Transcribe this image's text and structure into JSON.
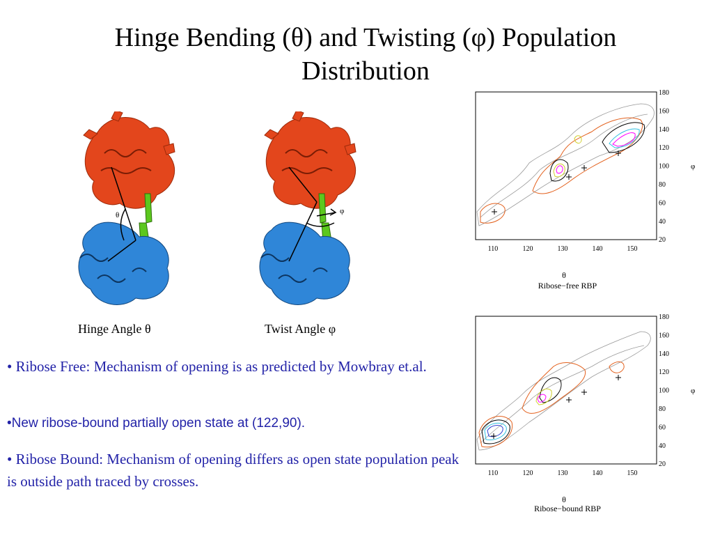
{
  "title": "Hinge Bending (θ) and Twisting (φ) Population Distribution",
  "figures": {
    "hinge_caption": "Hinge Angle θ",
    "twist_caption": "Twist Angle φ",
    "theta_symbol": "θ",
    "phi_symbol": "φ"
  },
  "bullets": [
    "• Ribose Free: Mechanism of opening is as predicted by Mowbray et.al.",
    "•New ribose-bound partially open state at  (122,90).",
    "• Ribose Bound: Mechanism of opening differs as open state population peak is outside path traced by crosses."
  ],
  "plots": [
    {
      "name": "Ribose−free RBP",
      "xlabel": "θ",
      "ylabel": "φ",
      "x_ticks": [
        "110",
        "120",
        "130",
        "140",
        "150"
      ],
      "y_ticks": [
        "180",
        "160",
        "140",
        "120",
        "100",
        "80",
        "60",
        "40",
        "20"
      ]
    },
    {
      "name": "Ribose−bound RBP",
      "xlabel": "θ",
      "ylabel": "φ",
      "x_ticks": [
        "110",
        "120",
        "130",
        "140",
        "150"
      ],
      "y_ticks": [
        "180",
        "160",
        "140",
        "120",
        "100",
        "80",
        "60",
        "40",
        "20"
      ]
    }
  ],
  "colors": {
    "bullet_text": "#2323a8",
    "domain_top": "#e3461c",
    "domain_bottom": "#2f86d8",
    "hinge": "#5cc81e"
  }
}
